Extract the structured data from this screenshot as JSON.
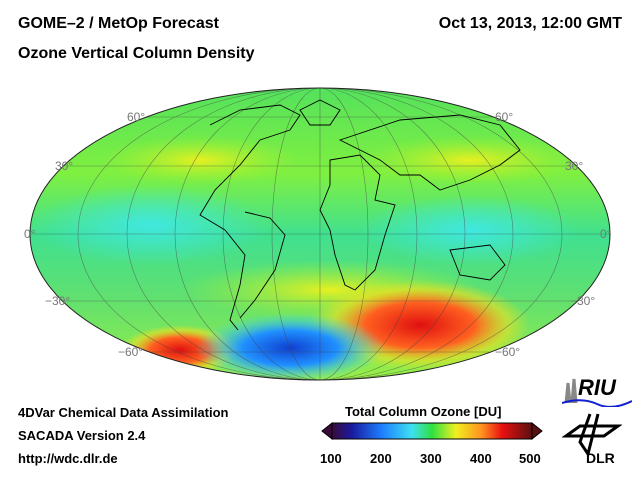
{
  "header": {
    "title": "GOME–2 / MetOp Forecast",
    "subtitle": "Ozone Vertical Column Density",
    "datetime": "Oct 13, 2013, 12:00 GMT"
  },
  "map": {
    "projection": "Hammer/Mollweide global",
    "lat_labels_left": [
      "60°",
      "30°",
      "0°",
      "−30°",
      "−60°"
    ],
    "lat_labels_right": [
      "60°",
      "30°",
      "0°",
      "−30°",
      "−60°"
    ]
  },
  "footer": {
    "line1": "4DVar Chemical Data Assimilation",
    "line2": "SACADA Version 2.4",
    "line3": "http://wdc.dlr.de"
  },
  "colorbar": {
    "title": "Total Column Ozone [DU]",
    "ticks": [
      "100",
      "200",
      "300",
      "400",
      "500"
    ],
    "colors": [
      "#3a0a3a",
      "#1a1aa0",
      "#1e7fff",
      "#3de0f0",
      "#30e040",
      "#f0f020",
      "#ff9020",
      "#e81010",
      "#5a1010"
    ]
  },
  "logos": {
    "riu": "RIU",
    "dlr": "DLR"
  }
}
